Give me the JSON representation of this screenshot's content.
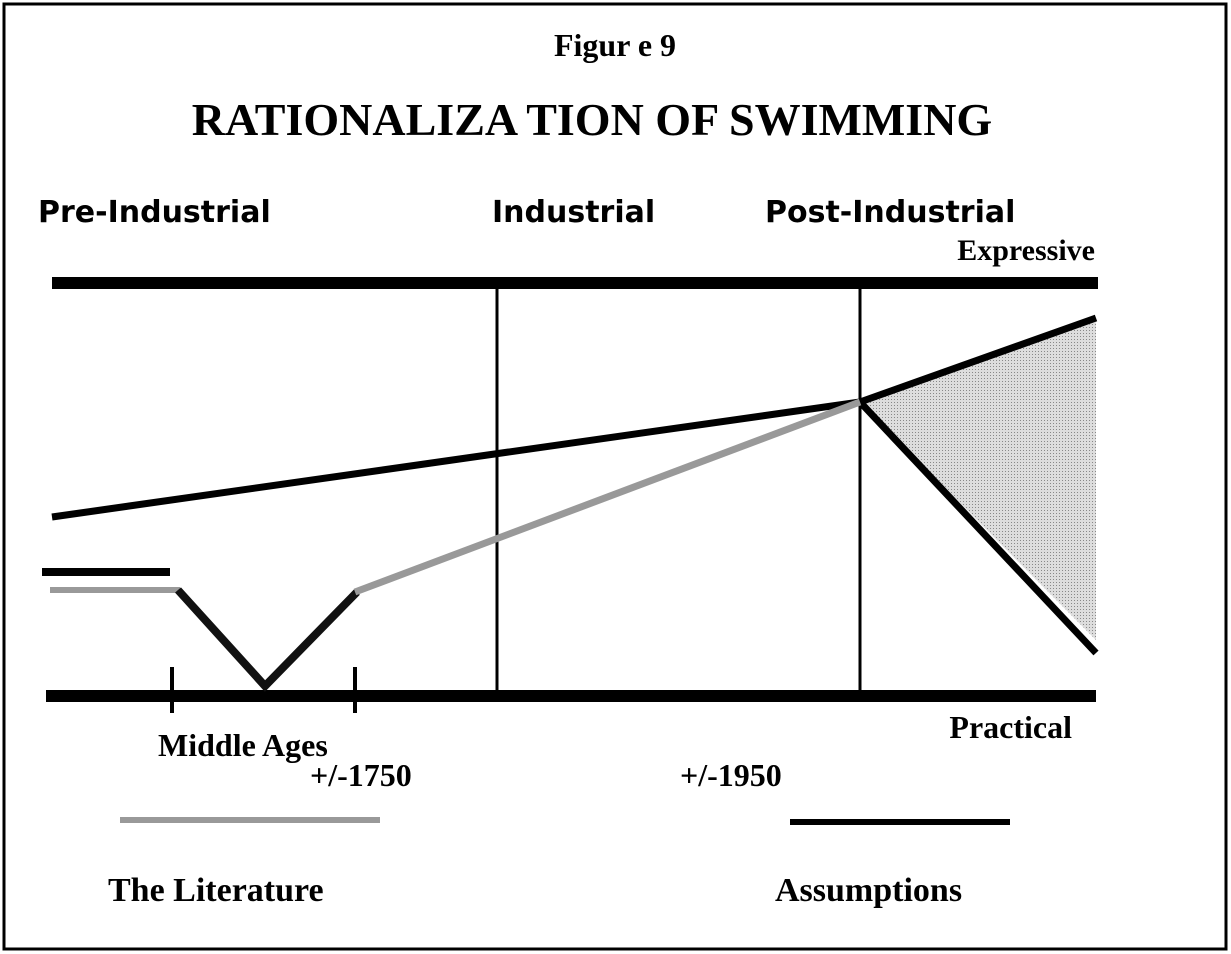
{
  "figure_label": "Figur e 9",
  "title": "RATIONALIZA TION OF SWIMMING",
  "periods": [
    "Pre-Industrial",
    "Industrial",
    "Post-Industrial"
  ],
  "axis_top": "Expressive",
  "axis_bottom": "Practical",
  "markers": [
    "Middle Ages",
    "+/-1750",
    "+/-1950"
  ],
  "legend": [
    "The Literature",
    "Assumptions"
  ]
}
